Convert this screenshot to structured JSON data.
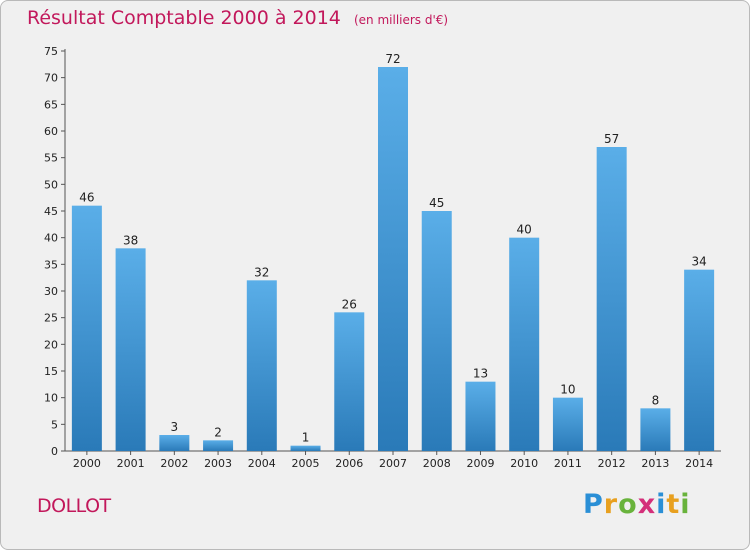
{
  "chart_data": {
    "type": "bar",
    "title": "Résultat Comptable 2000 à 2014",
    "subtitle": "(en milliers d'€)",
    "categories": [
      "2000",
      "2001",
      "2002",
      "2003",
      "2004",
      "2005",
      "2006",
      "2007",
      "2008",
      "2009",
      "2010",
      "2011",
      "2012",
      "2013",
      "2014"
    ],
    "values": [
      46,
      38,
      3,
      2,
      32,
      1,
      26,
      72,
      45,
      13,
      40,
      10,
      57,
      8,
      34
    ],
    "ylim": [
      0,
      75
    ],
    "yticks": [
      0,
      5,
      10,
      15,
      20,
      25,
      30,
      35,
      40,
      45,
      50,
      55,
      60,
      65,
      70,
      75
    ],
    "xlabel": "",
    "ylabel": "",
    "grid": false,
    "colors": {
      "bar_top": "#5aaee8",
      "bar_bottom": "#2a7ab8",
      "accent": "#c2185b"
    }
  },
  "footer": {
    "location": "DOLLOT"
  },
  "logo": {
    "text": "Proxiti"
  }
}
